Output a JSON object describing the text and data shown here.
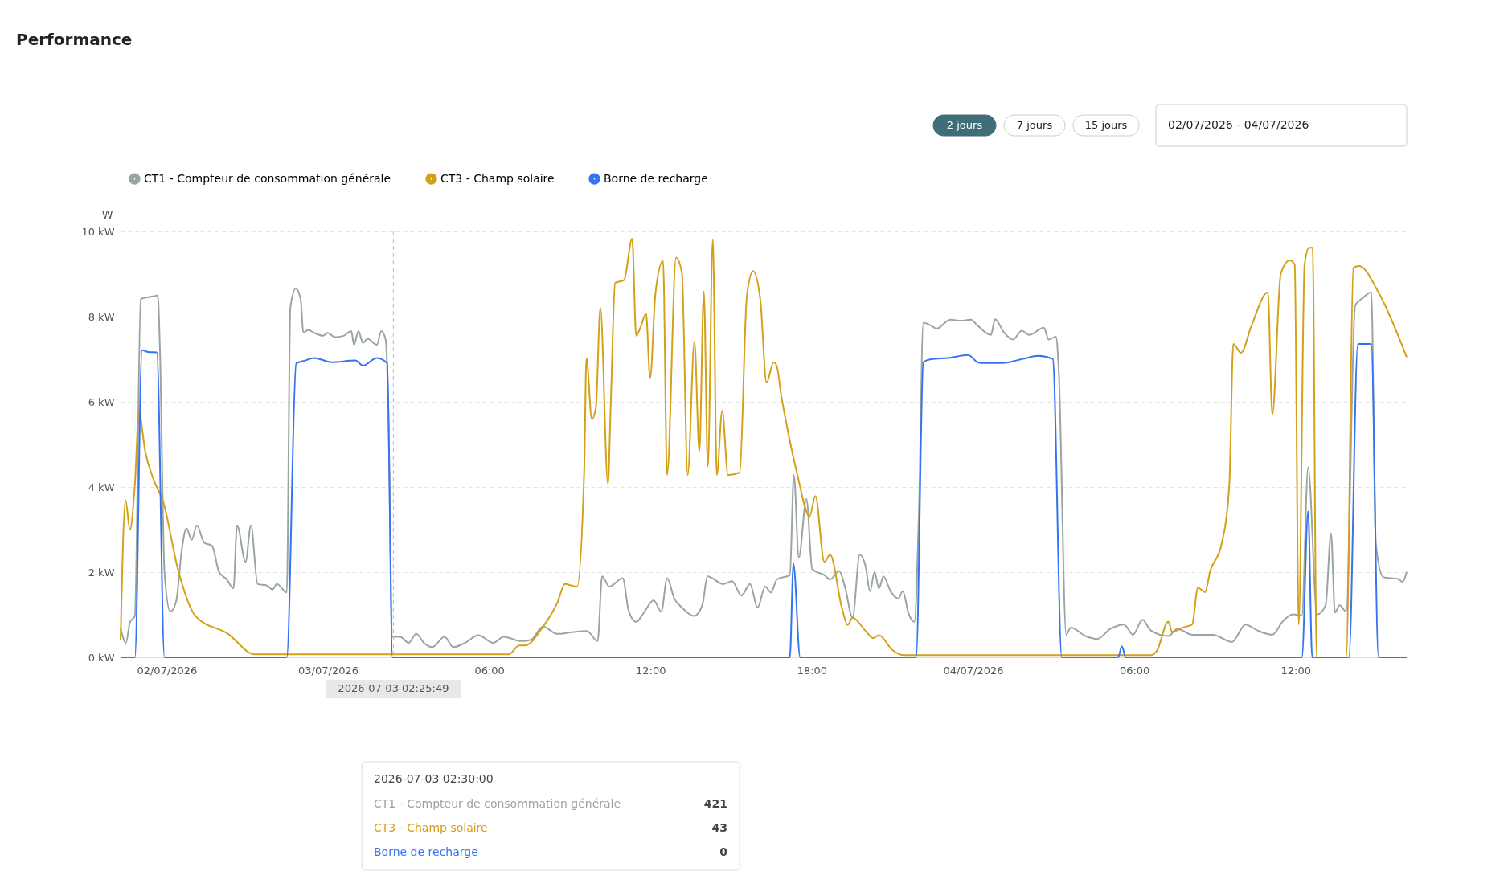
{
  "chart_data": {
    "type": "line",
    "title": "Performance",
    "ylabel": "W",
    "xlim": [
      "2026-07-02T16:17",
      "2026-07-04T16:08"
    ],
    "ylim": [
      0,
      10
    ],
    "xticks": [
      {
        "value": "2026-07-02T18:00",
        "label": "02/07/2026"
      },
      {
        "value": "2026-07-03T00:00",
        "label": "03/07/2026"
      },
      {
        "value": "2026-07-03T06:00",
        "label": "06:00"
      },
      {
        "value": "2026-07-03T12:00",
        "label": "12:00"
      },
      {
        "value": "2026-07-03T18:00",
        "label": "18:00"
      },
      {
        "value": "2026-07-04T00:00",
        "label": "04/07/2026"
      },
      {
        "value": "2026-07-04T06:00",
        "label": "06:00"
      },
      {
        "value": "2026-07-04T12:00",
        "label": "12:00"
      }
    ],
    "yticks": [
      {
        "value": 0,
        "label": "0 kW"
      },
      {
        "value": 2,
        "label": "2 kW"
      },
      {
        "value": 4,
        "label": "4 kW"
      },
      {
        "value": 6,
        "label": "6 kW"
      },
      {
        "value": 8,
        "label": "8 kW"
      },
      {
        "value": 10,
        "label": "10 kW"
      }
    ],
    "grid": "y",
    "legend": "top left",
    "marker": "none",
    "line_style": "solid",
    "ref_lines": [
      {
        "axis": "x",
        "value": "2026-07-03T02:26",
        "label": "2026-07-03 02:25:49",
        "color": "#bbbbbb",
        "line_style": "dashed"
      }
    ],
    "annotations": [
      "2 jours",
      "7 jours",
      "15 jours",
      "02/07/2026 - 04/07/2026",
      "2026-07-03 02:30:00",
      "CT1 - Compteur de consommation générale",
      "421",
      "CT3 - Champ solaire",
      "43",
      "Borne de recharge",
      "0"
    ],
    "series": [
      {
        "name": "CT1 - Compteur de consommation générale",
        "color": "#9aa5a3",
        "x": [
          "2026-07-02T16:17",
          "2026-07-02T16:29",
          "2026-07-02T16:38",
          "2026-07-02T16:49",
          "2026-07-02T17:02",
          "2026-07-02T17:15",
          "2026-07-02T17:32",
          "2026-07-02T17:40",
          "2026-07-02T17:45",
          "2026-07-02T17:55",
          "2026-07-02T18:08",
          "2026-07-02T18:21",
          "2026-07-02T18:34",
          "2026-07-02T18:44",
          "2026-07-02T18:56",
          "2026-07-02T19:07",
          "2026-07-02T19:24",
          "2026-07-02T19:41",
          "2026-07-02T19:57",
          "2026-07-02T20:14",
          "2026-07-02T20:29",
          "2026-07-02T20:37",
          "2026-07-02T20:56",
          "2026-07-02T21:08",
          "2026-07-02T21:23",
          "2026-07-02T21:43",
          "2026-07-02T21:56",
          "2026-07-02T22:06",
          "2026-07-02T22:28",
          "2026-07-02T22:36",
          "2026-07-02T22:48",
          "2026-07-02T22:59",
          "2026-07-02T23:05",
          "2026-07-02T23:16",
          "2026-07-02T23:29",
          "2026-07-02T23:49",
          "2026-07-02T23:59",
          "2026-07-03T00:15",
          "2026-07-03T00:35",
          "2026-07-03T00:52",
          "2026-07-03T00:58",
          "2026-07-03T01:08",
          "2026-07-03T01:18",
          "2026-07-03T01:28",
          "2026-07-03T01:49",
          "2026-07-03T01:59",
          "2026-07-03T02:09",
          "2026-07-03T02:14",
          "2026-07-03T02:24",
          "2026-07-03T02:41",
          "2026-07-03T03:00",
          "2026-07-03T03:17",
          "2026-07-03T03:34",
          "2026-07-03T03:53",
          "2026-07-03T04:20",
          "2026-07-03T04:40",
          "2026-07-03T05:06",
          "2026-07-03T05:36",
          "2026-07-03T06:09",
          "2026-07-03T06:32",
          "2026-07-03T07:12",
          "2026-07-03T07:33",
          "2026-07-03T08:00",
          "2026-07-03T08:32",
          "2026-07-03T09:05",
          "2026-07-03T09:38",
          "2026-07-03T10:02",
          "2026-07-03T10:12",
          "2026-07-03T10:28",
          "2026-07-03T10:58",
          "2026-07-03T11:11",
          "2026-07-03T11:28",
          "2026-07-03T11:44",
          "2026-07-03T12:07",
          "2026-07-03T12:24",
          "2026-07-03T12:37",
          "2026-07-03T12:53",
          "2026-07-03T13:10",
          "2026-07-03T13:37",
          "2026-07-03T13:56",
          "2026-07-03T14:07",
          "2026-07-03T14:43",
          "2026-07-03T15:02",
          "2026-07-03T15:23",
          "2026-07-03T15:42",
          "2026-07-03T15:59",
          "2026-07-03T16:16",
          "2026-07-03T16:29",
          "2026-07-03T16:42",
          "2026-07-03T17:11",
          "2026-07-03T17:20",
          "2026-07-03T17:31",
          "2026-07-03T17:48",
          "2026-07-03T18:01",
          "2026-07-03T18:28",
          "2026-07-03T18:41",
          "2026-07-03T19:01",
          "2026-07-03T19:14",
          "2026-07-03T19:31",
          "2026-07-03T19:47",
          "2026-07-03T20:00",
          "2026-07-03T20:10",
          "2026-07-03T20:20",
          "2026-07-03T20:30",
          "2026-07-03T20:40",
          "2026-07-03T20:56",
          "2026-07-03T21:13",
          "2026-07-03T21:23",
          "2026-07-03T21:36",
          "2026-07-03T21:49",
          "2026-07-03T21:59",
          "2026-07-03T22:09",
          "2026-07-03T22:26",
          "2026-07-03T22:39",
          "2026-07-03T23:09",
          "2026-07-03T23:32",
          "2026-07-03T23:55",
          "2026-07-04T00:10",
          "2026-07-04T00:40",
          "2026-07-04T00:49",
          "2026-07-04T01:09",
          "2026-07-04T01:29",
          "2026-07-04T01:49",
          "2026-07-04T02:05",
          "2026-07-04T02:38",
          "2026-07-04T02:49",
          "2026-07-04T03:05",
          "2026-07-04T03:11",
          "2026-07-04T03:28",
          "2026-07-04T03:38",
          "2026-07-04T04:11",
          "2026-07-04T04:37",
          "2026-07-04T05:07",
          "2026-07-04T05:37",
          "2026-07-04T05:57",
          "2026-07-04T06:18",
          "2026-07-04T06:37",
          "2026-07-04T07:16",
          "2026-07-04T07:36",
          "2026-07-04T08:09",
          "2026-07-04T08:55",
          "2026-07-04T09:38",
          "2026-07-04T10:08",
          "2026-07-04T10:35",
          "2026-07-04T11:08",
          "2026-07-04T11:31",
          "2026-07-04T11:54",
          "2026-07-04T12:14",
          "2026-07-04T12:28",
          "2026-07-04T12:48",
          "2026-07-04T13:07",
          "2026-07-04T13:19",
          "2026-07-04T13:28",
          "2026-07-04T13:38",
          "2026-07-04T13:53",
          "2026-07-04T14:13",
          "2026-07-04T14:29",
          "2026-07-04T14:49",
          "2026-07-04T14:59",
          "2026-07-04T15:16",
          "2026-07-04T15:49",
          "2026-07-04T15:59",
          "2026-07-04T16:08"
        ],
        "values": [
          0.69,
          0.34,
          0.83,
          0.97,
          8.41,
          8.45,
          8.48,
          8.5,
          7.17,
          2.0,
          1.07,
          1.31,
          2.55,
          3.03,
          2.76,
          3.1,
          2.69,
          2.62,
          2.0,
          1.83,
          1.62,
          3.1,
          2.24,
          3.1,
          1.72,
          1.69,
          1.59,
          1.72,
          1.52,
          8.21,
          8.66,
          8.41,
          7.62,
          7.69,
          7.62,
          7.55,
          7.62,
          7.52,
          7.55,
          7.66,
          7.34,
          7.66,
          7.38,
          7.48,
          7.34,
          7.66,
          7.45,
          6.14,
          0.48,
          0.48,
          0.34,
          0.55,
          0.34,
          0.24,
          0.48,
          0.24,
          0.34,
          0.52,
          0.34,
          0.48,
          0.38,
          0.41,
          0.72,
          0.55,
          0.59,
          0.62,
          0.38,
          1.9,
          1.66,
          1.86,
          1.1,
          0.83,
          1.03,
          1.34,
          1.07,
          1.86,
          1.38,
          1.17,
          0.97,
          1.24,
          1.9,
          1.72,
          1.79,
          1.45,
          1.72,
          1.17,
          1.66,
          1.52,
          1.83,
          1.93,
          4.28,
          2.34,
          3.72,
          2.07,
          1.93,
          1.83,
          2.03,
          1.66,
          0.93,
          2.41,
          2.14,
          1.55,
          2.0,
          1.62,
          1.9,
          1.55,
          1.38,
          1.55,
          1.03,
          0.83,
          3.38,
          7.86,
          7.79,
          7.72,
          7.93,
          7.9,
          7.93,
          7.79,
          7.57,
          7.94,
          7.63,
          7.46,
          7.67,
          7.57,
          7.74,
          7.46,
          7.53,
          6.81,
          0.53,
          0.7,
          0.5,
          0.43,
          0.67,
          0.77,
          0.53,
          0.88,
          0.63,
          0.5,
          0.67,
          0.53,
          0.53,
          0.36,
          0.77,
          0.63,
          0.53,
          0.84,
          1.01,
          0.98,
          4.46,
          1.01,
          1.22,
          2.91,
          1.05,
          1.22,
          1.08,
          8.26,
          8.43,
          8.57,
          2.67,
          1.88,
          1.84,
          1.77,
          2.01
        ]
      },
      {
        "name": "CT3 - Champ solaire",
        "color": "#d4a017",
        "x": [
          "2026-07-02T16:17",
          "2026-07-02T16:28",
          "2026-07-02T16:38",
          "2026-07-02T16:49",
          "2026-07-02T16:58",
          "2026-07-02T17:12",
          "2026-07-02T17:32",
          "2026-07-02T17:52",
          "2026-07-02T18:25",
          "2026-07-02T19:04",
          "2026-07-02T20:17",
          "2026-07-02T21:16",
          "2026-07-03T02:20",
          "2026-07-03T06:44",
          "2026-07-03T07:07",
          "2026-07-03T07:20",
          "2026-07-03T08:00",
          "2026-07-03T08:32",
          "2026-07-03T08:49",
          "2026-07-03T09:16",
          "2026-07-03T09:32",
          "2026-07-03T09:37",
          "2026-07-03T09:49",
          "2026-07-03T09:58",
          "2026-07-03T10:08",
          "2026-07-03T10:25",
          "2026-07-03T10:31",
          "2026-07-03T10:41",
          "2026-07-03T11:01",
          "2026-07-03T11:19",
          "2026-07-03T11:28",
          "2026-07-03T11:39",
          "2026-07-03T11:50",
          "2026-07-03T11:59",
          "2026-07-03T12:11",
          "2026-07-03T12:28",
          "2026-07-03T12:37",
          "2026-07-03T12:57",
          "2026-07-03T13:10",
          "2026-07-03T13:23",
          "2026-07-03T13:38",
          "2026-07-03T13:49",
          "2026-07-03T13:59",
          "2026-07-03T14:08",
          "2026-07-03T14:19",
          "2026-07-03T14:28",
          "2026-07-03T14:40",
          "2026-07-03T14:53",
          "2026-07-03T15:19",
          "2026-07-03T15:35",
          "2026-07-03T15:49",
          "2026-07-03T16:05",
          "2026-07-03T16:19",
          "2026-07-03T16:35",
          "2026-07-03T16:42",
          "2026-07-03T16:52",
          "2026-07-03T17:08",
          "2026-07-03T17:28",
          "2026-07-03T17:55",
          "2026-07-03T18:08",
          "2026-07-03T18:28",
          "2026-07-03T18:41",
          "2026-07-03T19:07",
          "2026-07-03T19:20",
          "2026-07-03T19:31",
          "2026-07-03T20:00",
          "2026-07-03T20:17",
          "2026-07-03T20:30",
          "2026-07-03T21:00",
          "2026-07-03T21:26",
          "2026-07-04T00:10",
          "2026-07-04T06:37",
          "2026-07-04T06:50",
          "2026-07-04T07:16",
          "2026-07-04T07:24",
          "2026-07-04T07:49",
          "2026-07-04T08:09",
          "2026-07-04T08:22",
          "2026-07-04T08:38",
          "2026-07-04T08:49",
          "2026-07-04T09:15",
          "2026-07-04T09:32",
          "2026-07-04T09:41",
          "2026-07-04T09:58",
          "2026-07-04T10:21",
          "2026-07-04T10:58",
          "2026-07-04T11:08",
          "2026-07-04T11:27",
          "2026-07-04T11:47",
          "2026-07-04T11:58",
          "2026-07-04T12:07",
          "2026-07-04T12:20",
          "2026-07-04T12:30",
          "2026-07-04T12:38",
          "2026-07-04T12:47",
          "2026-07-04T13:53",
          "2026-07-04T14:09",
          "2026-07-04T14:22",
          "2026-07-04T15:05",
          "2026-07-04T16:08"
        ],
        "values": [
          0.41,
          3.69,
          3.0,
          4.07,
          5.76,
          4.83,
          4.14,
          3.66,
          2.07,
          0.97,
          0.55,
          0.07,
          0.07,
          0.07,
          0.28,
          0.28,
          0.72,
          1.28,
          1.72,
          1.66,
          4.41,
          7.03,
          5.59,
          5.86,
          8.21,
          4.07,
          5.86,
          8.79,
          8.86,
          9.83,
          7.55,
          7.79,
          8.07,
          6.55,
          8.55,
          9.31,
          4.28,
          9.38,
          9.03,
          4.28,
          7.41,
          4.83,
          8.59,
          4.48,
          9.81,
          4.28,
          5.79,
          4.28,
          4.34,
          8.48,
          9.07,
          8.41,
          6.45,
          6.93,
          6.83,
          6.14,
          5.24,
          4.28,
          3.31,
          3.79,
          2.24,
          2.41,
          1.17,
          0.76,
          0.93,
          0.62,
          0.45,
          0.52,
          0.17,
          0.05,
          0.05,
          0.05,
          0.15,
          0.84,
          0.6,
          0.7,
          0.77,
          1.63,
          1.53,
          2.01,
          2.67,
          4.05,
          7.36,
          7.15,
          7.77,
          8.57,
          5.7,
          9.01,
          9.32,
          9.22,
          0.77,
          9.22,
          9.62,
          9.62,
          0,
          0,
          9.15,
          9.19,
          8.57,
          7.05
        ]
      },
      {
        "name": "Borne de recharge",
        "color": "#3574f0",
        "x": [
          "2026-07-02T16:17",
          "2026-07-02T16:49",
          "2026-07-02T17:05",
          "2026-07-02T17:19",
          "2026-07-02T17:38",
          "2026-07-02T17:55",
          "2026-07-02T22:28",
          "2026-07-02T22:49",
          "2026-07-02T23:09",
          "2026-07-02T23:29",
          "2026-07-03T00:08",
          "2026-07-03T01:01",
          "2026-07-03T01:18",
          "2026-07-03T01:49",
          "2026-07-03T02:12",
          "2026-07-03T02:24",
          "2026-07-03T17:11",
          "2026-07-03T17:19",
          "2026-07-03T17:34",
          "2026-07-03T21:53",
          "2026-07-03T22:09",
          "2026-07-03T22:26",
          "2026-07-03T23:05",
          "2026-07-03T23:49",
          "2026-07-04T00:10",
          "2026-07-04T00:19",
          "2026-07-04T01:05",
          "2026-07-04T01:52",
          "2026-07-04T02:25",
          "2026-07-04T02:58",
          "2026-07-04T03:18",
          "2026-07-04T05:24",
          "2026-07-04T05:32",
          "2026-07-04T05:41",
          "2026-07-04T12:14",
          "2026-07-04T12:28",
          "2026-07-04T12:37",
          "2026-07-04T13:59",
          "2026-07-04T14:19",
          "2026-07-04T14:49",
          "2026-07-04T15:05",
          "2026-07-04T16:08"
        ],
        "values": [
          0,
          0,
          7.21,
          7.17,
          7.16,
          0,
          0,
          6.9,
          6.97,
          7.03,
          6.93,
          6.97,
          6.85,
          7.03,
          6.91,
          0,
          0,
          2.2,
          0,
          0,
          6.93,
          7.0,
          7.03,
          7.1,
          6.93,
          6.91,
          6.91,
          7.01,
          7.08,
          7.01,
          0,
          0,
          0.26,
          0,
          0,
          3.43,
          0,
          0,
          7.36,
          7.36,
          0,
          0
        ]
      }
    ]
  }
}
